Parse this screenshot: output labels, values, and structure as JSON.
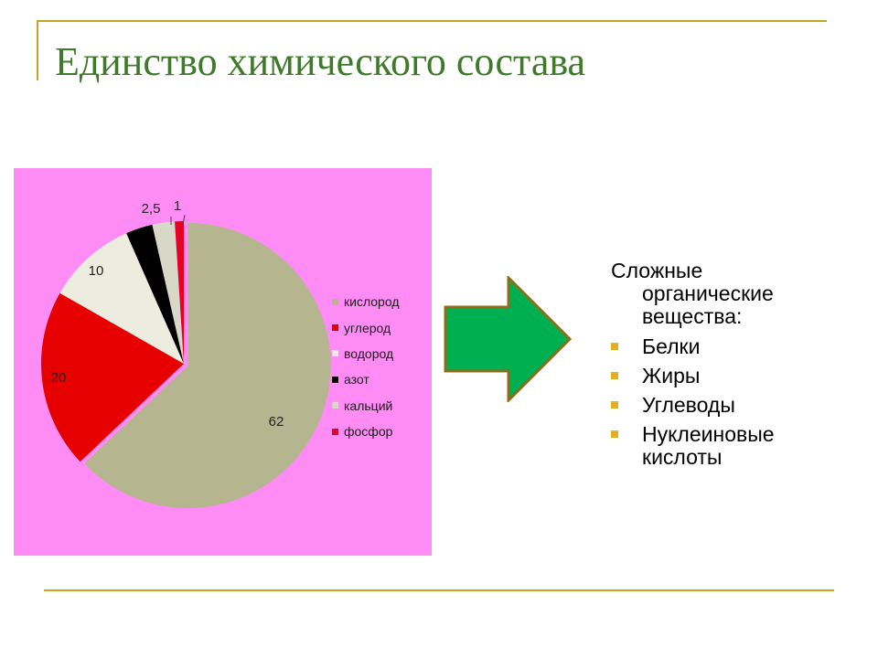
{
  "slide": {
    "title": "Единство химического состава"
  },
  "chart_data": {
    "type": "pie",
    "title": "",
    "categories": [
      "кислород",
      "углерод",
      "водород",
      "азот",
      "кальций",
      "фосфор"
    ],
    "values": [
      62,
      20,
      10,
      3,
      2.5,
      1
    ],
    "data_labels": [
      "62",
      "20",
      "10",
      "",
      "2,5",
      "1"
    ],
    "colors": [
      "#b5b58f",
      "#e60000",
      "#ececdf",
      "#000000",
      "#d8d8c8",
      "#e60026"
    ],
    "legend_position": "right",
    "background": "#ff8cf5"
  },
  "arrow": {
    "fill": "#00b050",
    "stroke": "#8c6d1a"
  },
  "text_block": {
    "intro": "Сложные органические вещества:",
    "bullets": [
      "Белки",
      " Жиры",
      " Углеводы",
      " Нуклеиновые кислоты"
    ]
  }
}
